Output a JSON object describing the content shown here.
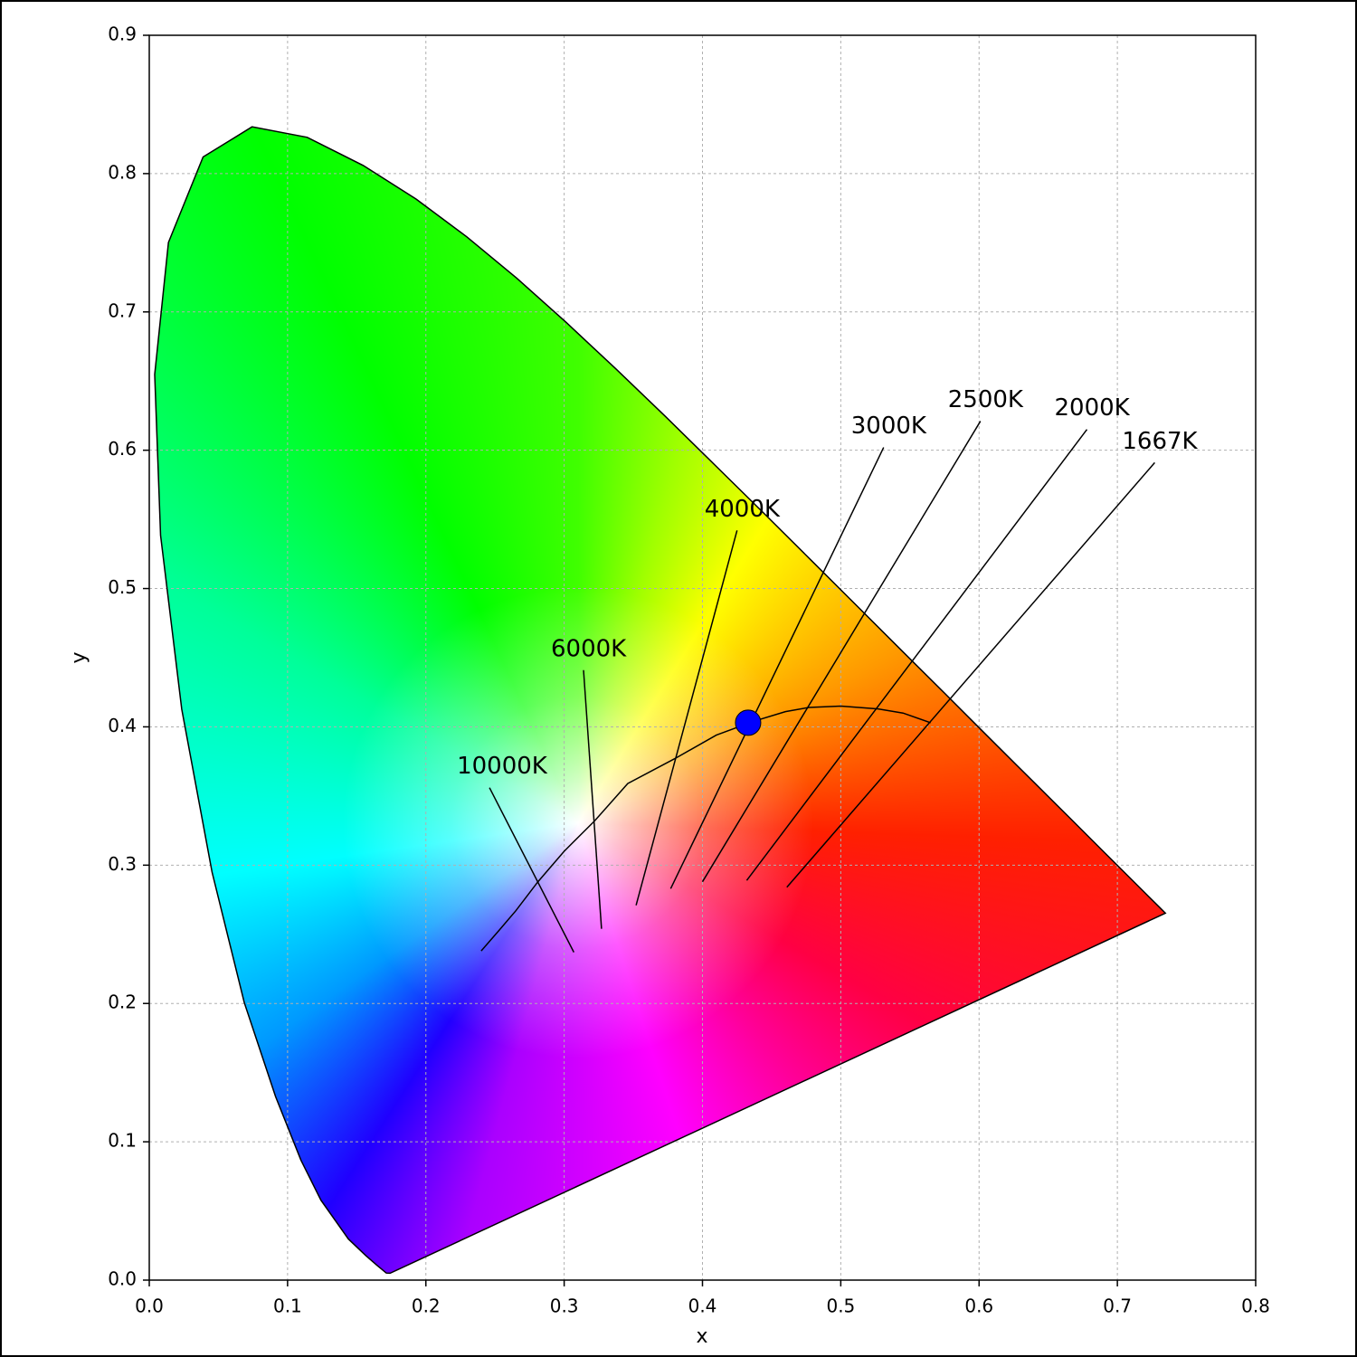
{
  "chart_data": {
    "type": "scatter",
    "xlabel": "x",
    "ylabel": "y",
    "xlim": [
      0,
      0.8
    ],
    "ylim": [
      0,
      0.9
    ],
    "xticks": [
      {
        "value": 0,
        "label": "0.0"
      },
      0.1,
      0.2,
      0.3,
      0.4,
      0.5,
      0.6,
      0.7,
      0.8
    ],
    "yticks": [
      {
        "value": 0,
        "label": "0.0"
      },
      0.1,
      0.2,
      0.3,
      0.4,
      0.5,
      0.6,
      0.7,
      0.8,
      0.9
    ],
    "grid": true,
    "series": [
      {
        "color": "#000000",
        "closed": true,
        "x": [
          0.1741,
          0.1714,
          0.1644,
          0.1566,
          0.144,
          0.1241,
          0.1096,
          0.0913,
          0.0687,
          0.0454,
          0.0235,
          0.0082,
          0.0039,
          0.0139,
          0.0389,
          0.0743,
          0.1142,
          0.1547,
          0.1929,
          0.2296,
          0.2658,
          0.3016,
          0.3373,
          0.3731,
          0.4087,
          0.4441,
          0.4788,
          0.5125,
          0.5448,
          0.5752,
          0.6029,
          0.627,
          0.6658,
          0.6915,
          0.719,
          0.73,
          0.7347
        ],
        "y": [
          0.005,
          0.0051,
          0.0109,
          0.0177,
          0.0297,
          0.0578,
          0.0868,
          0.1327,
          0.2007,
          0.295,
          0.4127,
          0.5384,
          0.6548,
          0.7502,
          0.812,
          0.8338,
          0.8262,
          0.8059,
          0.7816,
          0.7543,
          0.7243,
          0.6923,
          0.6589,
          0.6245,
          0.5896,
          0.5547,
          0.5202,
          0.4866,
          0.4544,
          0.4242,
          0.3965,
          0.3725,
          0.334,
          0.3083,
          0.2809,
          0.27,
          0.2653
        ]
      },
      {
        "color": "#000000",
        "closed": false,
        "x": [
          0.24,
          0.253,
          0.265,
          0.281,
          0.3,
          0.314,
          0.322,
          0.346,
          0.38,
          0.41,
          0.437,
          0.46,
          0.477,
          0.5,
          0.527,
          0.545,
          0.565
        ],
        "y": [
          0.238,
          0.253,
          0.267,
          0.288,
          0.31,
          0.324,
          0.332,
          0.359,
          0.377,
          0.394,
          0.404,
          0.411,
          0.414,
          0.415,
          0.413,
          0.41,
          0.403
        ]
      }
    ],
    "annotations": [
      {
        "text": "10000K",
        "x": [
          0.246,
          0.307
        ],
        "y": [
          0.356,
          0.237
        ]
      },
      {
        "text": "6000K",
        "x": [
          0.314,
          0.327
        ],
        "y": [
          0.441,
          0.254
        ]
      },
      {
        "text": "4000K",
        "x": [
          0.425,
          0.352
        ],
        "y": [
          0.542,
          0.271
        ]
      },
      {
        "text": "3000K",
        "x": [
          0.531,
          0.377
        ],
        "y": [
          0.602,
          0.283
        ]
      },
      {
        "text": "2500K",
        "x": [
          0.601,
          0.4
        ],
        "y": [
          0.621,
          0.288
        ]
      },
      {
        "text": "2000K",
        "x": [
          0.678,
          0.432
        ],
        "y": [
          0.615,
          0.289
        ]
      },
      {
        "text": "1667K",
        "x": [
          0.727,
          0.461
        ],
        "y": [
          0.591,
          0.284
        ]
      }
    ],
    "points": [
      {
        "x": 0.433,
        "y": 0.403,
        "color": "#0000ff"
      }
    ]
  }
}
